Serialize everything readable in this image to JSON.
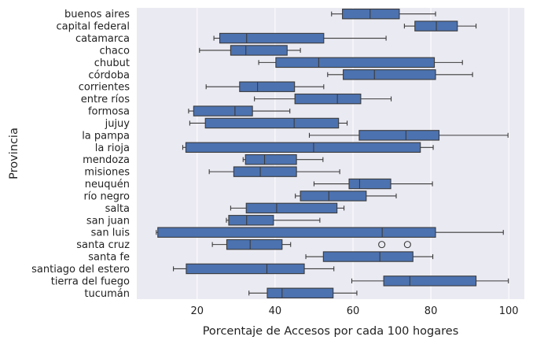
{
  "chart_data": {
    "type": "boxplot",
    "orientation": "horizontal",
    "xlabel": "Porcentaje de Accesos por cada 100 hogares",
    "ylabel": "Provincia",
    "xlim": [
      4.5,
      104
    ],
    "xticks": [
      20,
      40,
      60,
      80,
      100
    ],
    "grid": true,
    "colors": {
      "background": "#eaeaf2",
      "grid": "#ffffff",
      "box_fill": "#4c72b0",
      "box_edge": "#3b3b3b",
      "whisker": "#3b3b3b",
      "flier": "#3b3b3b"
    },
    "categories": [
      "buenos aires",
      "capital federal",
      "catamarca",
      "chaco",
      "chubut",
      "córdoba",
      "corrientes",
      "entre ríos",
      "formosa",
      "jujuy",
      "la pampa",
      "la rioja",
      "mendoza",
      "misiones",
      "neuquén",
      "río negro",
      "salta",
      "san juan",
      "san luis",
      "santa cruz",
      "santa fe",
      "santiago del estero",
      "tierra del fuego",
      "tucumán"
    ],
    "boxes": [
      {
        "category": "buenos aires",
        "whislo": 54.5,
        "q1": 57.3,
        "med": 64.4,
        "q3": 71.9,
        "whishi": 81.2,
        "fliers": []
      },
      {
        "category": "capital federal",
        "whislo": 73.2,
        "q1": 75.9,
        "med": 81.4,
        "q3": 86.8,
        "whishi": 91.6,
        "fliers": []
      },
      {
        "category": "catamarca",
        "whislo": 24.3,
        "q1": 25.8,
        "med": 32.7,
        "q3": 52.5,
        "whishi": 68.5,
        "fliers": []
      },
      {
        "category": "chaco",
        "whislo": 20.6,
        "q1": 28.6,
        "med": 32.5,
        "q3": 43.1,
        "whishi": 46.5,
        "fliers": []
      },
      {
        "category": "chubut",
        "whislo": 35.8,
        "q1": 40.2,
        "med": 51.2,
        "q3": 80.9,
        "whishi": 88.1,
        "fliers": []
      },
      {
        "category": "córdoba",
        "whislo": 53.5,
        "q1": 57.5,
        "med": 65.5,
        "q3": 81.2,
        "whishi": 90.7,
        "fliers": []
      },
      {
        "category": "corrientes",
        "whislo": 22.3,
        "q1": 30.9,
        "med": 35.5,
        "q3": 45.0,
        "whishi": 52.5,
        "fliers": []
      },
      {
        "category": "entre ríos",
        "whislo": 34.7,
        "q1": 45.1,
        "med": 56.0,
        "q3": 62.0,
        "whishi": 69.8,
        "fliers": []
      },
      {
        "category": "formosa",
        "whislo": 17.8,
        "q1": 19.1,
        "med": 29.7,
        "q3": 34.2,
        "whishi": 43.8,
        "fliers": []
      },
      {
        "category": "jujuy",
        "whislo": 18.1,
        "q1": 22.1,
        "med": 44.9,
        "q3": 56.3,
        "whishi": 58.5,
        "fliers": []
      },
      {
        "category": "la pampa",
        "whislo": 48.8,
        "q1": 61.6,
        "med": 73.6,
        "q3": 82.1,
        "whishi": 99.8,
        "fliers": []
      },
      {
        "category": "la rioja",
        "whislo": 16.3,
        "q1": 17.1,
        "med": 49.9,
        "q3": 77.3,
        "whishi": 80.6,
        "fliers": []
      },
      {
        "category": "mendoza",
        "whislo": 31.8,
        "q1": 32.4,
        "med": 37.3,
        "q3": 45.5,
        "whishi": 52.3,
        "fliers": []
      },
      {
        "category": "misiones",
        "whislo": 23.1,
        "q1": 29.4,
        "med": 36.2,
        "q3": 45.5,
        "whishi": 56.6,
        "fliers": []
      },
      {
        "category": "neuquén",
        "whislo": 50.0,
        "q1": 59.0,
        "med": 61.7,
        "q3": 69.7,
        "whishi": 80.4,
        "fliers": []
      },
      {
        "category": "río negro",
        "whislo": 45.2,
        "q1": 46.5,
        "med": 53.8,
        "q3": 63.4,
        "whishi": 71.1,
        "fliers": []
      },
      {
        "category": "salta",
        "whislo": 28.6,
        "q1": 32.6,
        "med": 40.4,
        "q3": 55.9,
        "whishi": 57.7,
        "fliers": []
      },
      {
        "category": "san juan",
        "whislo": 27.5,
        "q1": 28.1,
        "med": 32.7,
        "q3": 39.6,
        "whishi": 51.5,
        "fliers": []
      },
      {
        "category": "san luis",
        "whislo": 9.5,
        "q1": 9.9,
        "med": 67.5,
        "q3": 81.2,
        "whishi": 98.6,
        "fliers": []
      },
      {
        "category": "santa cruz",
        "whislo": 23.9,
        "q1": 27.6,
        "med": 33.6,
        "q3": 41.8,
        "whishi": 44.0,
        "fliers": [
          67.4,
          74.0
        ]
      },
      {
        "category": "santa fe",
        "whislo": 47.9,
        "q1": 52.4,
        "med": 66.9,
        "q3": 75.4,
        "whishi": 80.5,
        "fliers": []
      },
      {
        "category": "santiago del estero",
        "whislo": 13.9,
        "q1": 17.2,
        "med": 37.9,
        "q3": 47.5,
        "whishi": 55.1,
        "fliers": []
      },
      {
        "category": "tierra del fuego",
        "whislo": 59.7,
        "q1": 67.9,
        "med": 74.6,
        "q3": 91.6,
        "whishi": 99.9,
        "fliers": []
      },
      {
        "category": "tucumán",
        "whislo": 33.3,
        "q1": 38.0,
        "med": 41.8,
        "q3": 54.9,
        "whishi": 61.0,
        "fliers": []
      }
    ]
  }
}
